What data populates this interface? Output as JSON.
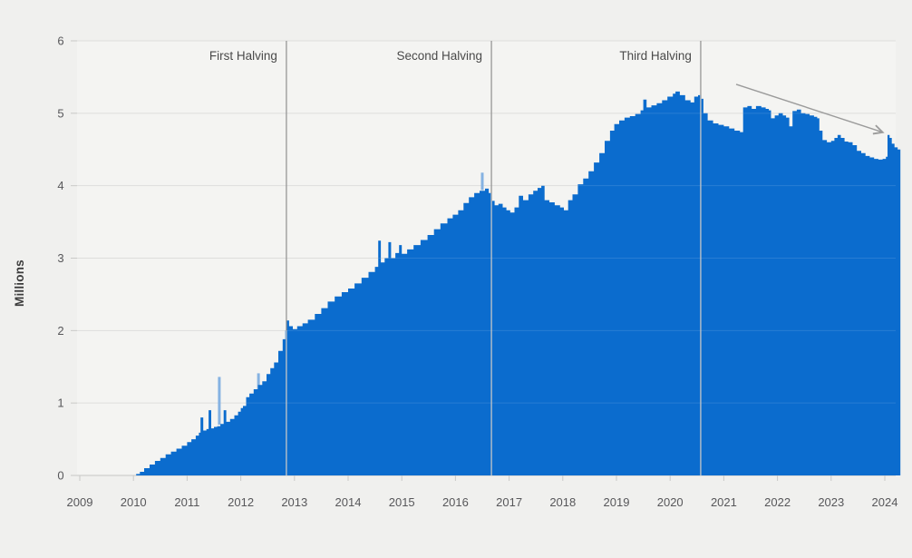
{
  "chart_data": {
    "type": "area",
    "title": "",
    "ylabel": "Millions",
    "xlabel": "",
    "ylim": [
      0,
      6
    ],
    "y_ticks": [
      0,
      1,
      2,
      3,
      4,
      5,
      6
    ],
    "x_ticks": [
      2009,
      2010,
      2011,
      2012,
      2013,
      2014,
      2015,
      2016,
      2017,
      2018,
      2019,
      2020,
      2021,
      2022,
      2023,
      2024
    ],
    "grid": "horizontal",
    "legend": "none",
    "series": [
      {
        "name": "value-millions",
        "points": [
          [
            2010.05,
            0.02
          ],
          [
            2010.12,
            0.05
          ],
          [
            2010.2,
            0.1
          ],
          [
            2010.3,
            0.15
          ],
          [
            2010.4,
            0.2
          ],
          [
            2010.5,
            0.24
          ],
          [
            2010.6,
            0.29
          ],
          [
            2010.7,
            0.33
          ],
          [
            2010.8,
            0.37
          ],
          [
            2010.9,
            0.41
          ],
          [
            2011.0,
            0.46
          ],
          [
            2011.08,
            0.5
          ],
          [
            2011.16,
            0.55
          ],
          [
            2011.22,
            0.59
          ],
          [
            2011.25,
            0.8
          ],
          [
            2011.3,
            0.62
          ],
          [
            2011.36,
            0.64
          ],
          [
            2011.4,
            0.9
          ],
          [
            2011.45,
            0.65
          ],
          [
            2011.5,
            0.67
          ],
          [
            2011.56,
            0.68
          ],
          [
            2011.62,
            0.71
          ],
          [
            2011.68,
            0.9
          ],
          [
            2011.73,
            0.74
          ],
          [
            2011.8,
            0.78
          ],
          [
            2011.88,
            0.83
          ],
          [
            2011.95,
            0.88
          ],
          [
            2012.0,
            0.93
          ],
          [
            2012.04,
            0.96
          ],
          [
            2012.1,
            1.08
          ],
          [
            2012.16,
            1.13
          ],
          [
            2012.24,
            1.19
          ],
          [
            2012.32,
            1.25
          ],
          [
            2012.4,
            1.3
          ],
          [
            2012.48,
            1.4
          ],
          [
            2012.55,
            1.48
          ],
          [
            2012.62,
            1.56
          ],
          [
            2012.7,
            1.72
          ],
          [
            2012.78,
            1.88
          ],
          [
            2012.83,
            2.0
          ],
          [
            2012.86,
            2.14
          ],
          [
            2012.9,
            2.06
          ],
          [
            2012.97,
            2.02
          ],
          [
            2013.05,
            2.06
          ],
          [
            2013.15,
            2.1
          ],
          [
            2013.25,
            2.15
          ],
          [
            2013.38,
            2.23
          ],
          [
            2013.5,
            2.31
          ],
          [
            2013.62,
            2.4
          ],
          [
            2013.75,
            2.47
          ],
          [
            2013.88,
            2.53
          ],
          [
            2014.0,
            2.58
          ],
          [
            2014.12,
            2.65
          ],
          [
            2014.25,
            2.73
          ],
          [
            2014.38,
            2.81
          ],
          [
            2014.5,
            2.88
          ],
          [
            2014.56,
            3.24
          ],
          [
            2014.61,
            2.94
          ],
          [
            2014.68,
            3.0
          ],
          [
            2014.75,
            3.22
          ],
          [
            2014.8,
            3.0
          ],
          [
            2014.88,
            3.07
          ],
          [
            2014.95,
            3.18
          ],
          [
            2015.0,
            3.06
          ],
          [
            2015.1,
            3.12
          ],
          [
            2015.22,
            3.18
          ],
          [
            2015.35,
            3.25
          ],
          [
            2015.48,
            3.32
          ],
          [
            2015.6,
            3.4
          ],
          [
            2015.72,
            3.48
          ],
          [
            2015.85,
            3.55
          ],
          [
            2015.95,
            3.6
          ],
          [
            2016.05,
            3.66
          ],
          [
            2016.15,
            3.76
          ],
          [
            2016.25,
            3.84
          ],
          [
            2016.35,
            3.9
          ],
          [
            2016.45,
            3.93
          ],
          [
            2016.55,
            3.96
          ],
          [
            2016.62,
            3.9
          ],
          [
            2016.67,
            3.79
          ],
          [
            2016.73,
            3.73
          ],
          [
            2016.8,
            3.75
          ],
          [
            2016.88,
            3.7
          ],
          [
            2016.95,
            3.66
          ],
          [
            2017.02,
            3.63
          ],
          [
            2017.1,
            3.7
          ],
          [
            2017.18,
            3.86
          ],
          [
            2017.26,
            3.8
          ],
          [
            2017.36,
            3.88
          ],
          [
            2017.45,
            3.93
          ],
          [
            2017.53,
            3.97
          ],
          [
            2017.6,
            4.0
          ],
          [
            2017.66,
            3.8
          ],
          [
            2017.75,
            3.77
          ],
          [
            2017.85,
            3.73
          ],
          [
            2017.95,
            3.7
          ],
          [
            2018.02,
            3.66
          ],
          [
            2018.1,
            3.8
          ],
          [
            2018.18,
            3.88
          ],
          [
            2018.28,
            4.02
          ],
          [
            2018.38,
            4.1
          ],
          [
            2018.48,
            4.2
          ],
          [
            2018.58,
            4.32
          ],
          [
            2018.68,
            4.45
          ],
          [
            2018.78,
            4.62
          ],
          [
            2018.88,
            4.76
          ],
          [
            2018.96,
            4.85
          ],
          [
            2019.05,
            4.9
          ],
          [
            2019.15,
            4.94
          ],
          [
            2019.25,
            4.96
          ],
          [
            2019.35,
            4.99
          ],
          [
            2019.45,
            5.04
          ],
          [
            2019.5,
            5.19
          ],
          [
            2019.56,
            5.08
          ],
          [
            2019.65,
            5.11
          ],
          [
            2019.75,
            5.14
          ],
          [
            2019.85,
            5.18
          ],
          [
            2019.95,
            5.23
          ],
          [
            2020.05,
            5.27
          ],
          [
            2020.1,
            5.3
          ],
          [
            2020.18,
            5.25
          ],
          [
            2020.28,
            5.18
          ],
          [
            2020.38,
            5.15
          ],
          [
            2020.45,
            5.23
          ],
          [
            2020.52,
            5.25
          ],
          [
            2020.57,
            5.2
          ],
          [
            2020.62,
            5.0
          ],
          [
            2020.7,
            4.9
          ],
          [
            2020.8,
            4.86
          ],
          [
            2020.9,
            4.84
          ],
          [
            2021.0,
            4.82
          ],
          [
            2021.1,
            4.79
          ],
          [
            2021.2,
            4.76
          ],
          [
            2021.3,
            4.74
          ],
          [
            2021.36,
            5.08
          ],
          [
            2021.44,
            5.1
          ],
          [
            2021.52,
            5.06
          ],
          [
            2021.6,
            5.1
          ],
          [
            2021.7,
            5.08
          ],
          [
            2021.78,
            5.06
          ],
          [
            2021.84,
            5.04
          ],
          [
            2021.88,
            4.93
          ],
          [
            2021.95,
            4.97
          ],
          [
            2022.02,
            5.0
          ],
          [
            2022.1,
            4.97
          ],
          [
            2022.16,
            4.94
          ],
          [
            2022.22,
            4.82
          ],
          [
            2022.28,
            5.03
          ],
          [
            2022.36,
            5.05
          ],
          [
            2022.44,
            5.0
          ],
          [
            2022.52,
            4.99
          ],
          [
            2022.6,
            4.97
          ],
          [
            2022.68,
            4.95
          ],
          [
            2022.74,
            4.93
          ],
          [
            2022.78,
            4.76
          ],
          [
            2022.84,
            4.63
          ],
          [
            2022.92,
            4.6
          ],
          [
            2023.0,
            4.62
          ],
          [
            2023.06,
            4.66
          ],
          [
            2023.12,
            4.7
          ],
          [
            2023.18,
            4.66
          ],
          [
            2023.25,
            4.61
          ],
          [
            2023.32,
            4.6
          ],
          [
            2023.4,
            4.56
          ],
          [
            2023.48,
            4.48
          ],
          [
            2023.56,
            4.45
          ],
          [
            2023.64,
            4.41
          ],
          [
            2023.72,
            4.39
          ],
          [
            2023.8,
            4.37
          ],
          [
            2023.88,
            4.36
          ],
          [
            2023.96,
            4.37
          ],
          [
            2024.02,
            4.4
          ],
          [
            2024.05,
            4.7
          ],
          [
            2024.09,
            4.66
          ],
          [
            2024.13,
            4.58
          ],
          [
            2024.18,
            4.53
          ],
          [
            2024.24,
            4.5
          ]
        ]
      }
    ],
    "light_spikes": [
      {
        "t": 2011.6,
        "v": 1.36,
        "base": 0.7
      },
      {
        "t": 2012.33,
        "v": 1.41,
        "base": 1.1
      },
      {
        "t": 2016.5,
        "v": 4.18,
        "base": 3.94
      }
    ],
    "halvings": [
      {
        "label": "First Halving",
        "year": 2012.85
      },
      {
        "label": "Second Halving",
        "year": 2016.67
      },
      {
        "label": "Third Halving",
        "year": 2020.57
      }
    ],
    "trend_arrow": {
      "x1": 2021.23,
      "y1": 5.4,
      "x2": 2023.95,
      "y2": 4.74
    },
    "colors": {
      "area": "#0B6CCE",
      "light_spike": "#85B2E2",
      "grid": "#DEDEDC",
      "baseline": "#C6C6C4",
      "tick": "#C9C9C7",
      "halving_line": "#8F8F8F",
      "halving_line_over_area": "rgba(255,255,255,0.55)",
      "arrow": "#9B9B9B",
      "bg_outer": "#F0F0EE",
      "bg_plot": "#F4F4F2",
      "tick_text": "#57575A",
      "annotation_text": "#4A4A4A"
    }
  }
}
